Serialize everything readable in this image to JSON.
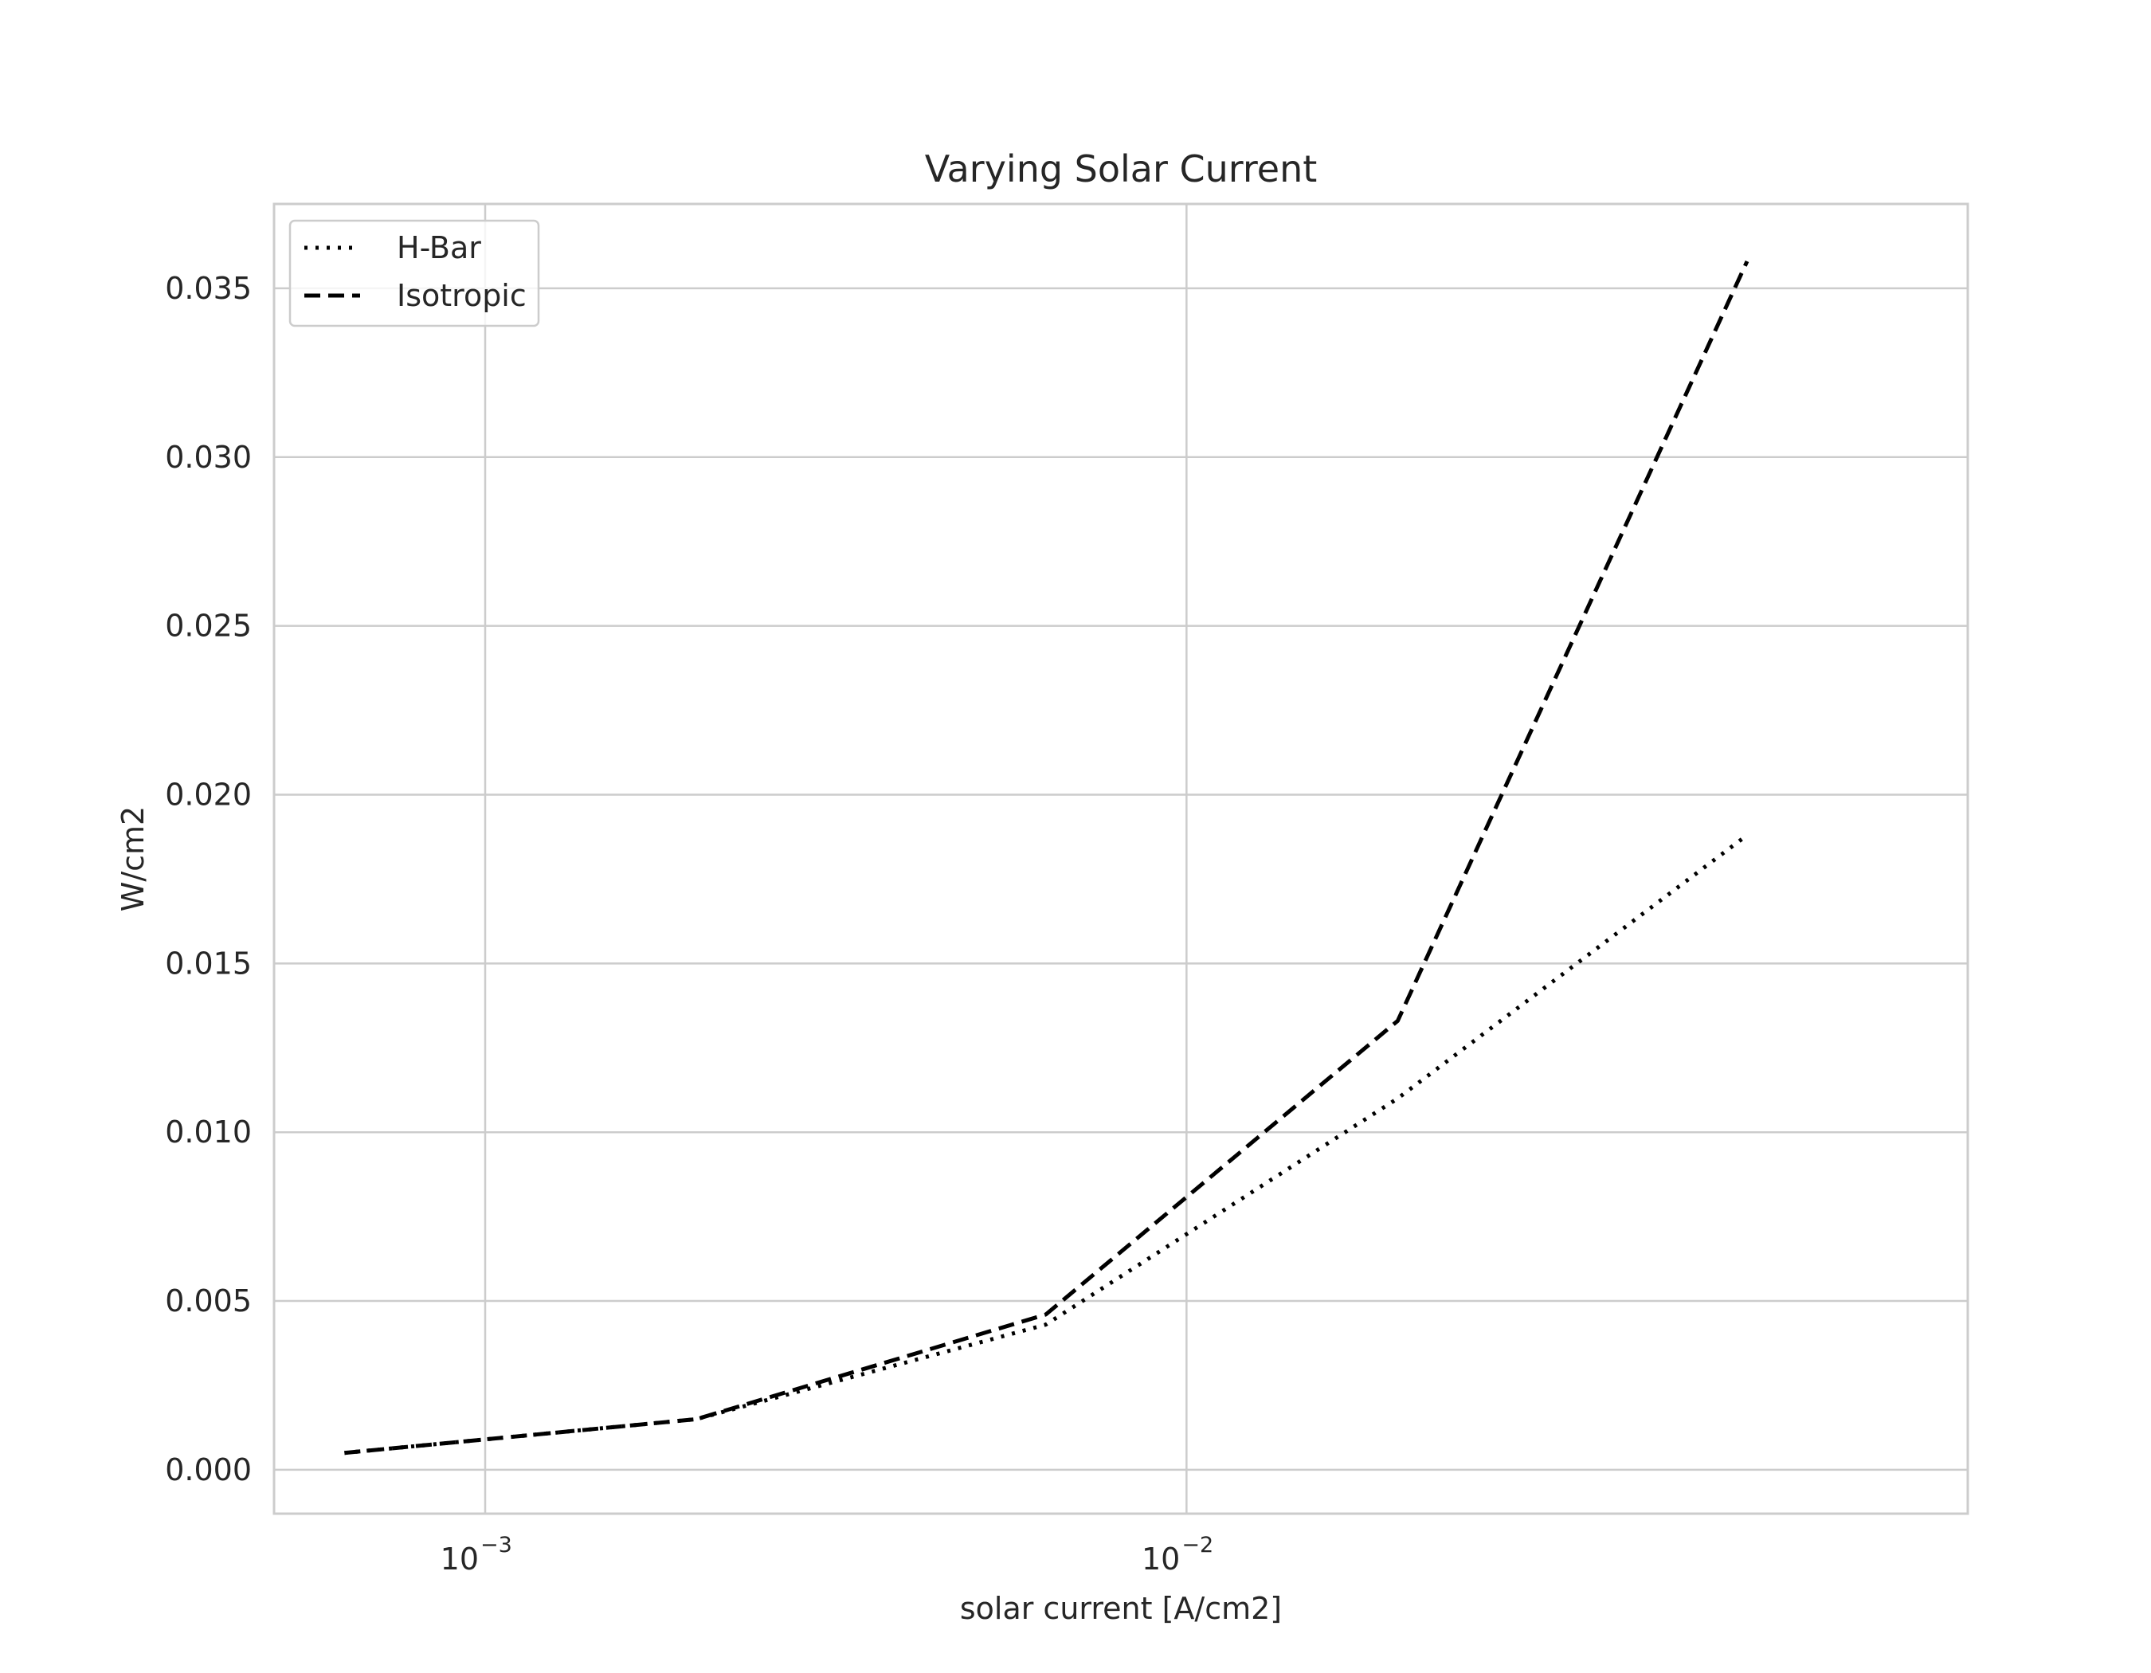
{
  "chart_data": {
    "type": "line",
    "title": "Varying Solar Current",
    "xlabel": "solar current [A/cm2]",
    "ylabel": "W/cm2",
    "xscale": "log",
    "xlim": [
      0.0005,
      0.13
    ],
    "ylim": [
      -0.0013,
      0.0375
    ],
    "grid": true,
    "legend": "top-left",
    "x": [
      0.00063,
      0.002,
      0.0063,
      0.02,
      0.063
    ],
    "series": [
      {
        "name": "H-Bar",
        "style": "dotted",
        "color": "#000000",
        "values": [
          0.0005,
          0.0015,
          0.0043,
          0.011,
          0.0188
        ]
      },
      {
        "name": "Isotropic",
        "style": "dashed",
        "color": "#000000",
        "values": [
          0.0005,
          0.0015,
          0.0046,
          0.0133,
          0.0358
        ]
      }
    ],
    "x_ticks": [
      {
        "value": 0.001,
        "base": "10",
        "exp": "−3"
      },
      {
        "value": 0.01,
        "base": "10",
        "exp": "−2"
      }
    ],
    "y_ticks": [
      {
        "value": 0.0,
        "label": "0.000"
      },
      {
        "value": 0.005,
        "label": "0.005"
      },
      {
        "value": 0.01,
        "label": "0.010"
      },
      {
        "value": 0.015,
        "label": "0.015"
      },
      {
        "value": 0.02,
        "label": "0.020"
      },
      {
        "value": 0.025,
        "label": "0.025"
      },
      {
        "value": 0.03,
        "label": "0.030"
      },
      {
        "value": 0.035,
        "label": "0.035"
      }
    ],
    "colors": {
      "grid": "#cccccc",
      "axes": "#cccccc",
      "text": "#262626",
      "line": "#000000"
    }
  }
}
